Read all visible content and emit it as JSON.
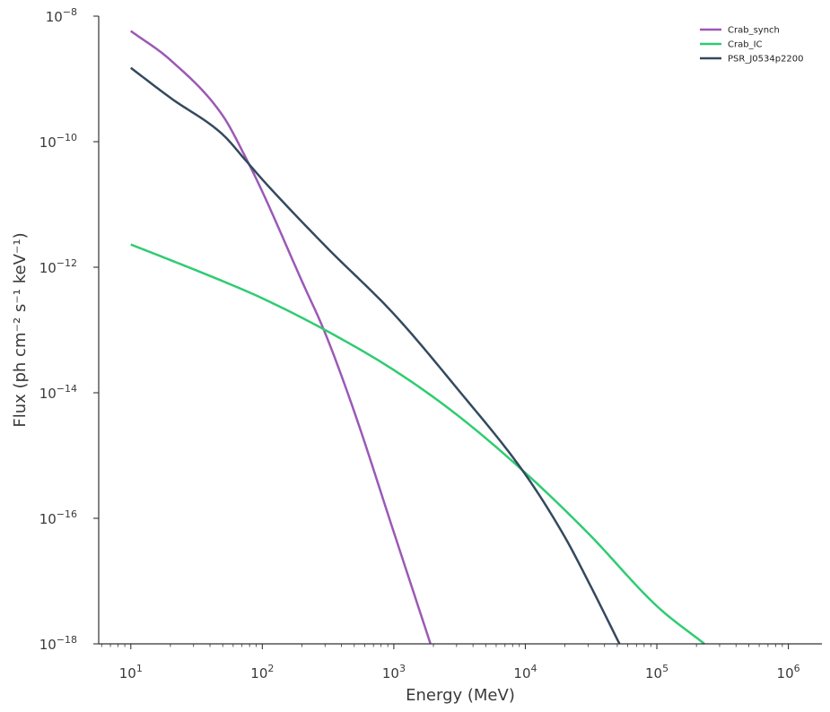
{
  "chart_data": {
    "type": "line",
    "xscale": "log",
    "yscale": "log",
    "xlabel": "Energy (MeV)",
    "ylabel": "Flux (ph cm⁻² s⁻¹ keV⁻¹)",
    "xlim": [
      5.7,
      1800000.0
    ],
    "ylim": [
      1e-18,
      1e-08
    ],
    "x_ticks": [
      {
        "base": "10",
        "exp": "1",
        "value": 10.0
      },
      {
        "base": "10",
        "exp": "2",
        "value": 100.0
      },
      {
        "base": "10",
        "exp": "3",
        "value": 1000.0
      },
      {
        "base": "10",
        "exp": "4",
        "value": 10000.0
      },
      {
        "base": "10",
        "exp": "5",
        "value": 100000.0
      },
      {
        "base": "10",
        "exp": "6",
        "value": 1000000.0
      }
    ],
    "y_ticks": [
      {
        "base": "10",
        "exp": "−18",
        "value": 1e-18
      },
      {
        "base": "10",
        "exp": "−16",
        "value": 1e-16
      },
      {
        "base": "10",
        "exp": "−14",
        "value": 1e-14
      },
      {
        "base": "10",
        "exp": "−12",
        "value": 1e-12
      },
      {
        "base": "10",
        "exp": "−10",
        "value": 1e-10
      },
      {
        "base": "10",
        "exp": "−8",
        "value": 1e-08
      }
    ],
    "legend_position": "top-right",
    "grid": false,
    "series": [
      {
        "name": "Crab_synch",
        "color": "#9b59b6",
        "x": [
          10,
          20,
          50,
          75,
          100,
          200,
          300,
          500,
          1000,
          1900
        ],
        "y": [
          5.8e-09,
          2e-09,
          2.6e-10,
          5.5e-11,
          1.6e-11,
          6e-13,
          9e-14,
          5e-15,
          6e-17,
          1e-18
        ]
      },
      {
        "name": "Crab_IC",
        "color": "#2ecc71",
        "x": [
          10,
          20,
          50,
          100,
          300,
          1000,
          3000,
          10000,
          30000,
          100000,
          230000
        ],
        "y": [
          2.3e-12,
          1.3e-12,
          6e-13,
          3.2e-13,
          1e-13,
          2.3e-14,
          4.5e-15,
          5.3e-16,
          5.8e-17,
          4e-18,
          1e-18
        ]
      },
      {
        "name": "PSR_J0534p2200",
        "color": "#34495e",
        "x": [
          10,
          20,
          50,
          75,
          100,
          300,
          1000,
          3000,
          10000,
          20000,
          30000,
          52000
        ],
        "y": [
          1.5e-09,
          5e-10,
          1.3e-10,
          5e-11,
          2.5e-11,
          2.2e-12,
          1.8e-13,
          1.2e-14,
          5e-16,
          5e-17,
          1e-17,
          1e-18
        ]
      }
    ]
  }
}
